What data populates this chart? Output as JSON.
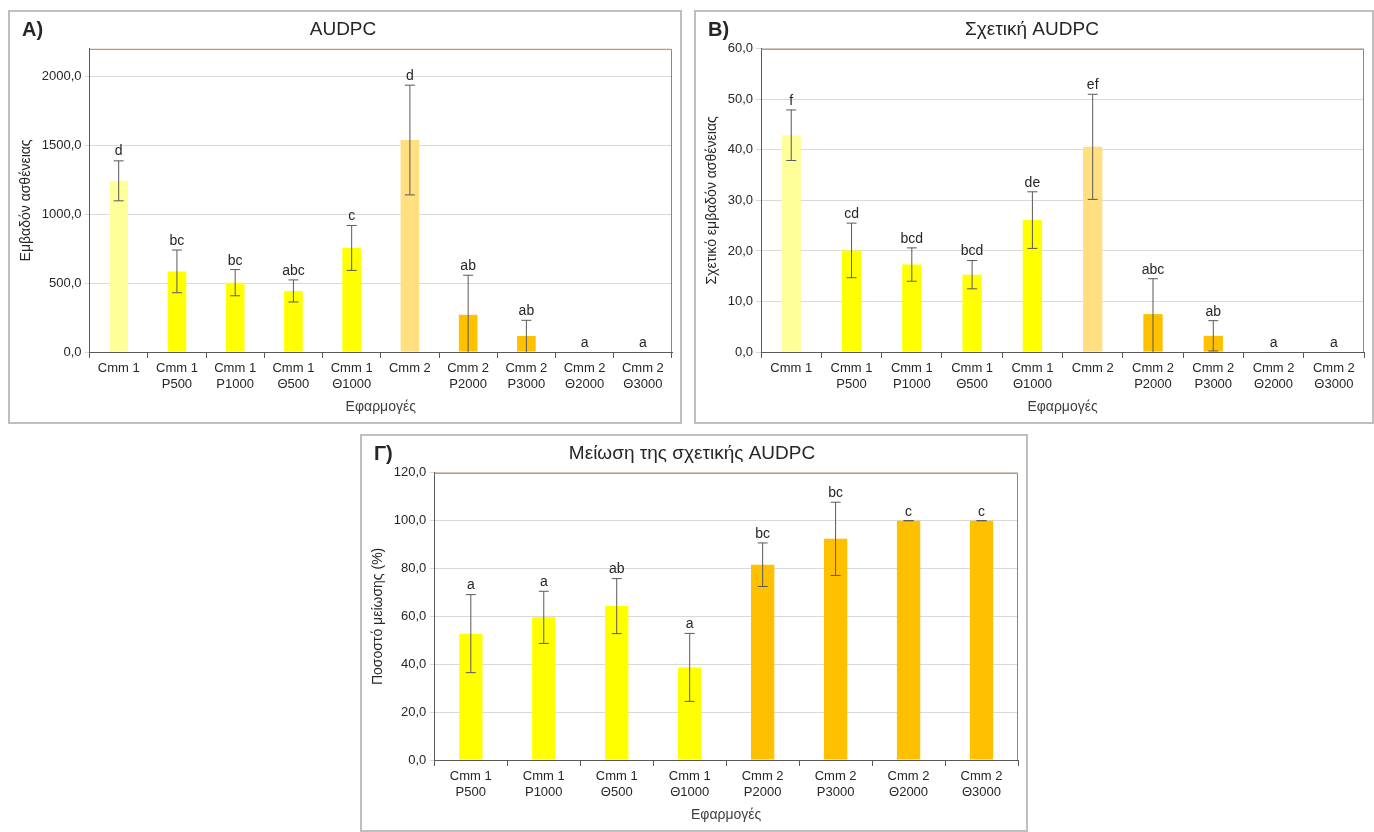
{
  "chart_data": [
    {
      "type": "bar",
      "title": "AUDPC",
      "xlabel": "Εφαρμογές",
      "ylabel": "Εμβαδόν ασθένειας",
      "categories": [
        "Cmm 1",
        "Cmm 1\nP500",
        "Cmm 1\nP1000",
        "Cmm 1\nΘ500",
        "Cmm 1\nΘ1000",
        "Cmm 2",
        "Cmm 2\nP2000",
        "Cmm 2\nP3000",
        "Cmm 2\nΘ2000",
        "Cmm 2\nΘ3000"
      ],
      "values": [
        1242,
        585,
        503,
        443,
        755,
        1538,
        270,
        116,
        0,
        0
      ],
      "errors": [
        145,
        155,
        95,
        80,
        163,
        398,
        [
          0,
          557
        ],
        [
          0,
          230
        ],
        null,
        null
      ],
      "colors": [
        "#ffff99",
        "#ffff00",
        "#ffff00",
        "#ffff00",
        "#ffff00",
        "#ffdf80",
        "#ffc000",
        "#ffc000",
        "#ffc000",
        "#ffc000"
      ],
      "ylim": [
        0,
        2200
      ],
      "yticks": [
        {
          "value": 0,
          "label": "0,0"
        },
        {
          "value": 500,
          "label": "500,0"
        },
        {
          "value": 1000,
          "label": "1000,0"
        },
        {
          "value": 1500,
          "label": "1500,0"
        },
        {
          "value": 2000,
          "label": "2000,0"
        }
      ],
      "grid": "y",
      "legend": false,
      "annotations": [
        "A)",
        {
          "text": "d",
          "x": "Cmm 1",
          "y": 1390
        },
        {
          "text": "bc",
          "x": "Cmm 1\nP500",
          "y": 739
        },
        {
          "text": "bc",
          "x": "Cmm 1\nP1000",
          "y": 597
        },
        {
          "text": "abc",
          "x": "Cmm 1\nΘ500",
          "y": 522
        },
        {
          "text": "c",
          "x": "Cmm 1\nΘ1000",
          "y": 921
        },
        {
          "text": "d",
          "x": "Cmm 2",
          "y": 1937
        },
        {
          "text": "ab",
          "x": "Cmm 2\nP2000",
          "y": 557
        },
        {
          "text": "ab",
          "x": "Cmm 2\nP3000",
          "y": 230
        },
        {
          "text": "a",
          "x": "Cmm 2\nΘ2000",
          "y": 0
        },
        {
          "text": "a",
          "x": "Cmm 2\nΘ3000",
          "y": 0
        }
      ]
    },
    {
      "type": "bar",
      "title": "Σχετική AUDPC",
      "xlabel": "Εφαρμογές",
      "ylabel": "Σχετικό εμβαδόν ασθένειας",
      "categories": [
        "Cmm 1",
        "Cmm 1\nP500",
        "Cmm 1\nP1000",
        "Cmm 1\nΘ500",
        "Cmm 1\nΘ1000",
        "Cmm 2",
        "Cmm 2\nP2000",
        "Cmm 2\nP3000",
        "Cmm 2\nΘ2000",
        "Cmm 2\nΘ3000"
      ],
      "values": [
        42.9,
        20.1,
        17.3,
        15.3,
        26.1,
        40.6,
        7.5,
        3.2,
        0,
        0
      ],
      "errors": [
        5,
        5.4,
        3.3,
        2.8,
        5.6,
        10.4,
        [
          0,
          14.5
        ],
        3,
        null,
        null
      ],
      "colors": [
        "#ffff99",
        "#ffff00",
        "#ffff00",
        "#ffff00",
        "#ffff00",
        "#ffdf80",
        "#ffc000",
        "#ffc000",
        "#ffc000",
        "#ffc000"
      ],
      "ylim": [
        0,
        60
      ],
      "yticks": [
        {
          "value": 0,
          "label": "0,0"
        },
        {
          "value": 10,
          "label": "10,0"
        },
        {
          "value": 20,
          "label": "20,0"
        },
        {
          "value": 30,
          "label": "30,0"
        },
        {
          "value": 40,
          "label": "40,0"
        },
        {
          "value": 50,
          "label": "50,0"
        },
        {
          "value": 60,
          "label": "60,0"
        }
      ],
      "grid": "y",
      "legend": false,
      "annotations": [
        "B)",
        {
          "text": "f",
          "x": "Cmm 1",
          "y": 47.9
        },
        {
          "text": "cd",
          "x": "Cmm 1\nP500",
          "y": 25.5
        },
        {
          "text": "bcd",
          "x": "Cmm 1\nP1000",
          "y": 20.6
        },
        {
          "text": "bcd",
          "x": "Cmm 1\nΘ500",
          "y": 18.1
        },
        {
          "text": "de",
          "x": "Cmm 1\nΘ1000",
          "y": 31.7
        },
        {
          "text": "ef",
          "x": "Cmm 2",
          "y": 51
        },
        {
          "text": "abc",
          "x": "Cmm 2\nP2000",
          "y": 14.5
        },
        {
          "text": "ab",
          "x": "Cmm 2\nP3000",
          "y": 6.2
        },
        {
          "text": "a",
          "x": "Cmm 2\nΘ2000",
          "y": 0
        },
        {
          "text": "a",
          "x": "Cmm 2\nΘ3000",
          "y": 0
        }
      ]
    },
    {
      "type": "bar",
      "title": "Μείωση της σχετικής AUDPC",
      "xlabel": "Εφαρμογές",
      "ylabel": "Ποσοστό μείωσης (%)",
      "categories": [
        "Cmm 1\nP500",
        "Cmm 1\nP1000",
        "Cmm 1\nΘ500",
        "Cmm 1\nΘ1000",
        "Cmm 2\nP2000",
        "Cmm 2\nP3000",
        "Cmm 2\nΘ2000",
        "Cmm 2\nΘ3000"
      ],
      "values": [
        52.8,
        59.6,
        64.3,
        38.7,
        81.6,
        92.4,
        100,
        100
      ],
      "errors": [
        16.3,
        10.9,
        11.5,
        14.2,
        9.1,
        15.3,
        0,
        0
      ],
      "colors": [
        "#ffff00",
        "#ffff00",
        "#ffff00",
        "#ffff00",
        "#ffc000",
        "#ffc000",
        "#ffc000",
        "#ffc000"
      ],
      "ylim": [
        0,
        120
      ],
      "yticks": [
        {
          "value": 0,
          "label": "0,0"
        },
        {
          "value": 20,
          "label": "20,0"
        },
        {
          "value": 40,
          "label": "40,0"
        },
        {
          "value": 60,
          "label": "60,0"
        },
        {
          "value": 80,
          "label": "80,0"
        },
        {
          "value": 100,
          "label": "100,0"
        },
        {
          "value": 120,
          "label": "120,0"
        }
      ],
      "grid": "y",
      "legend": false,
      "annotations": [
        "Γ)",
        {
          "text": "a",
          "x": "Cmm 1\nP500",
          "y": 69.1
        },
        {
          "text": "a",
          "x": "Cmm 1\nP1000",
          "y": 70.5
        },
        {
          "text": "ab",
          "x": "Cmm 1\nΘ500",
          "y": 75.8
        },
        {
          "text": "a",
          "x": "Cmm 1\nΘ1000",
          "y": 52.9
        },
        {
          "text": "bc",
          "x": "Cmm 2\nP2000",
          "y": 90.7
        },
        {
          "text": "bc",
          "x": "Cmm 2\nP3000",
          "y": 107.7
        },
        {
          "text": "c",
          "x": "Cmm 2\nΘ2000",
          "y": 100
        },
        {
          "text": "c",
          "x": "Cmm 2\nΘ3000",
          "y": 100
        }
      ]
    }
  ]
}
